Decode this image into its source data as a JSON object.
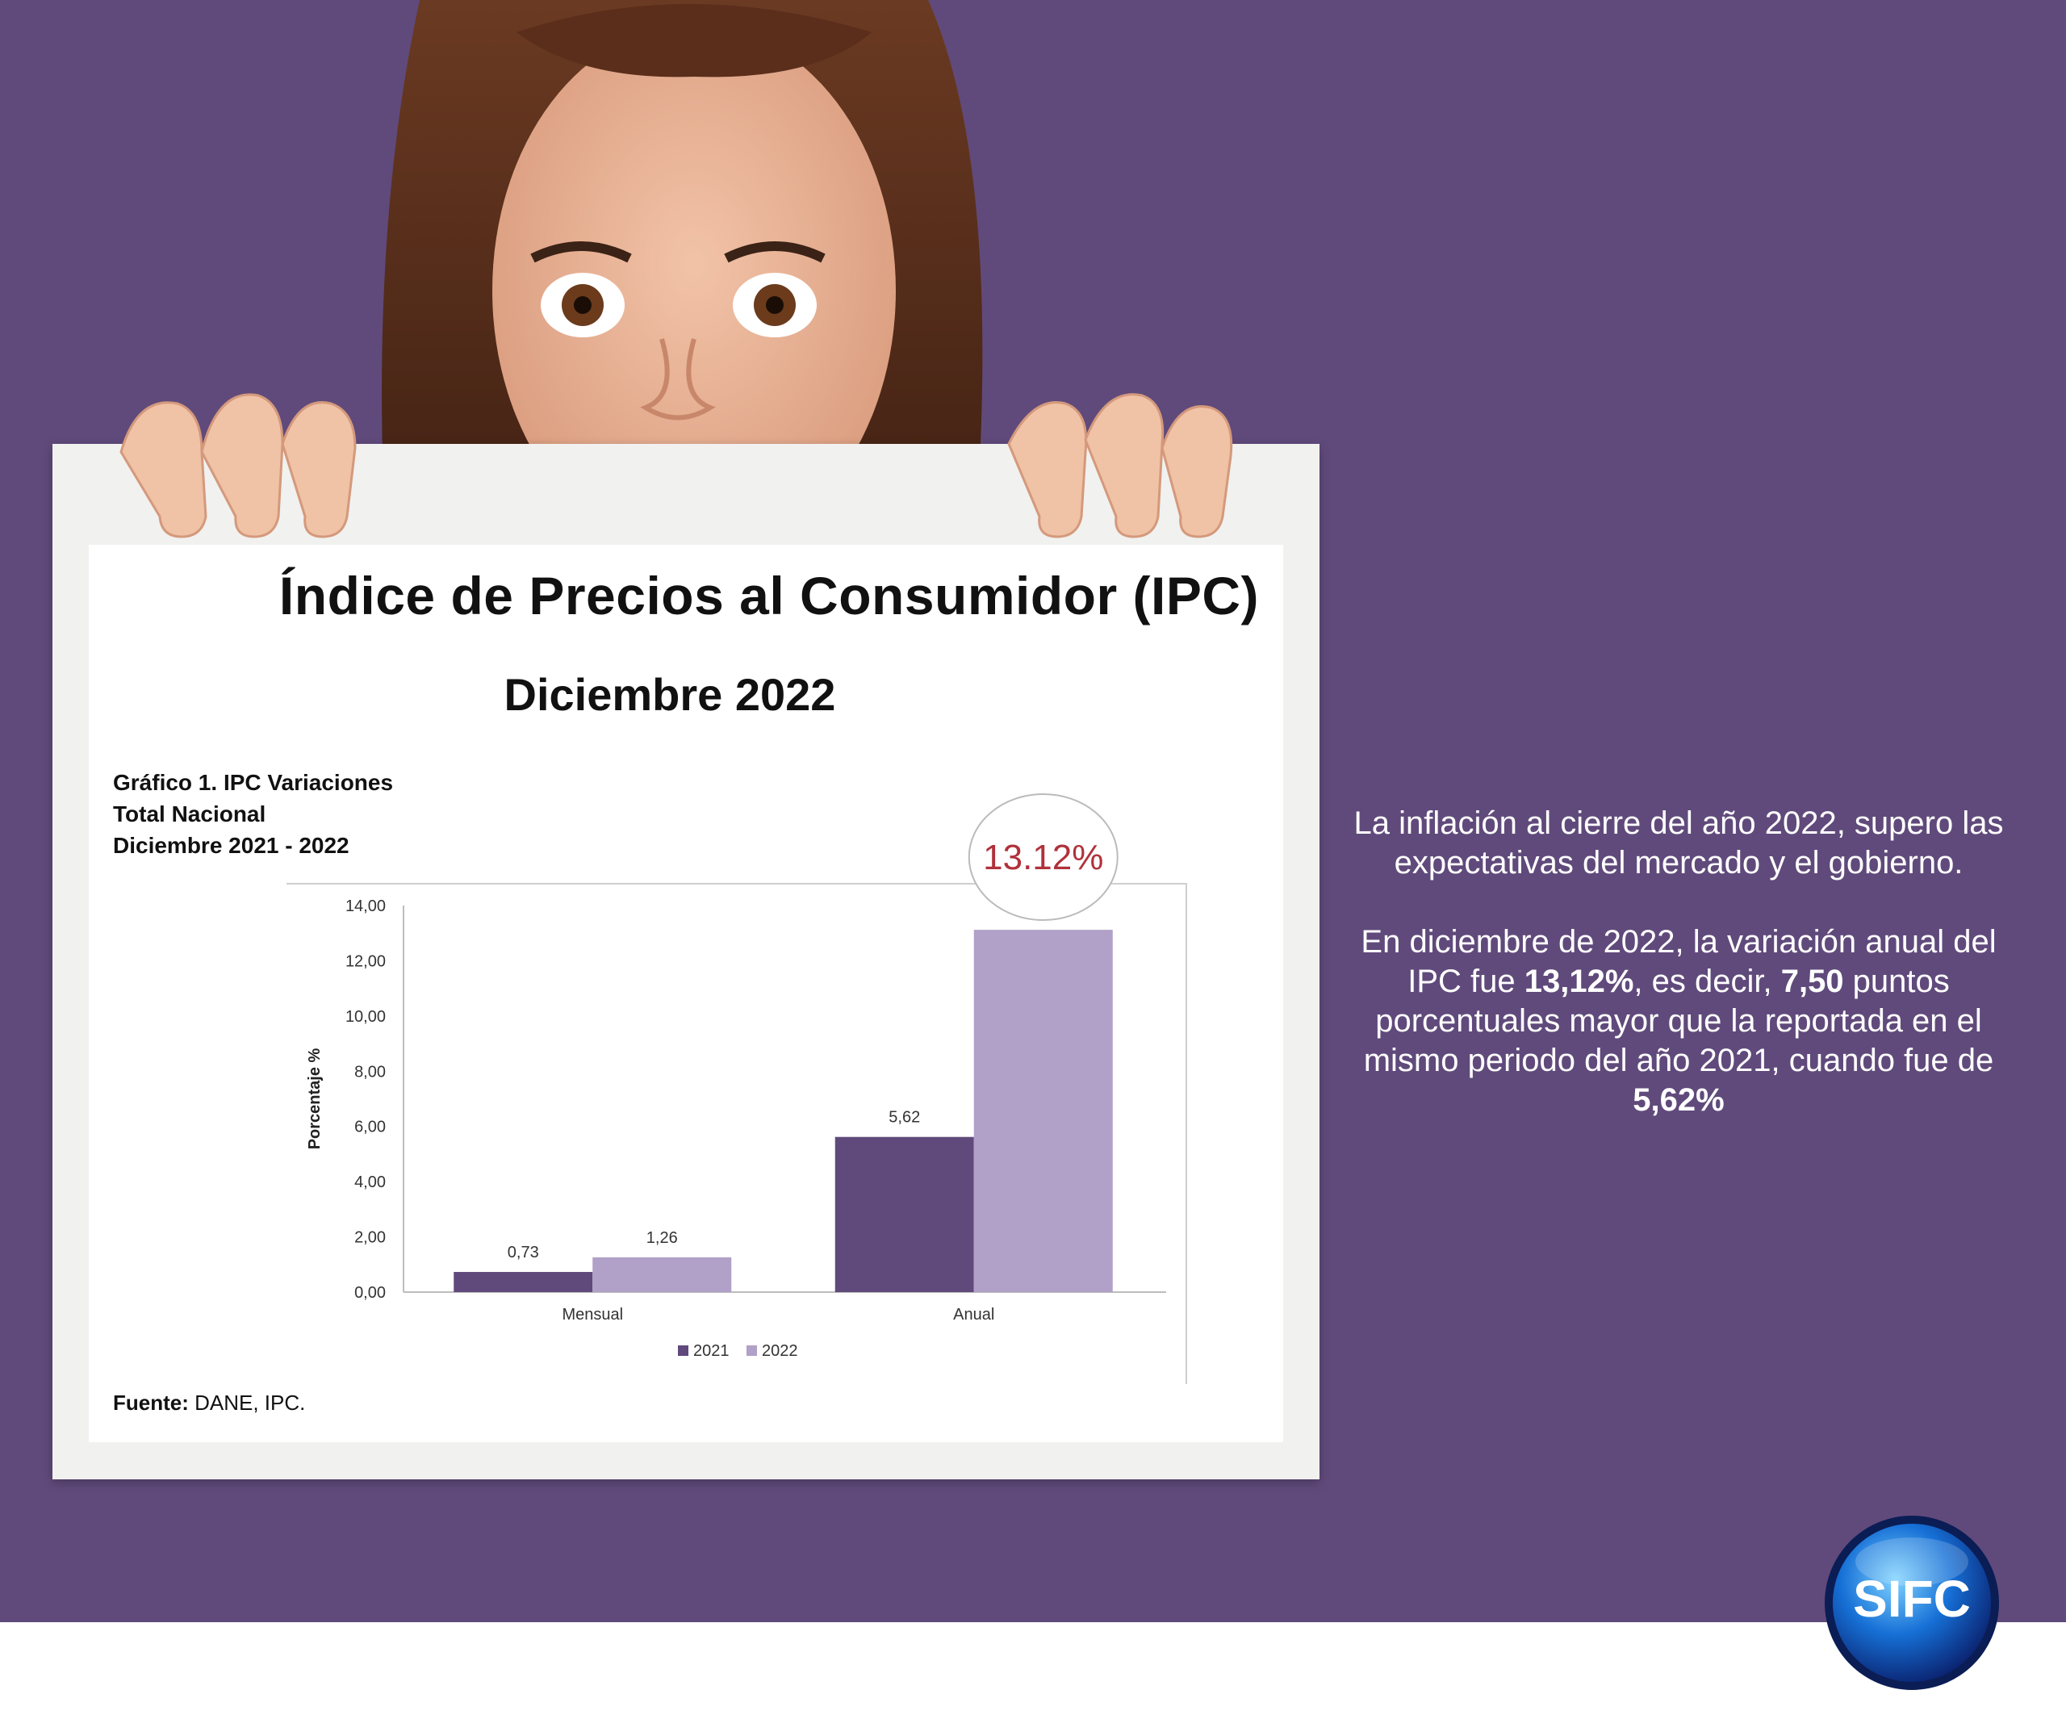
{
  "header": {
    "title": "Índice de Precios al Consumidor (IPC)",
    "subtitle": "Diciembre 2022"
  },
  "chart_caption": {
    "line1": "Gráfico 1. IPC Variaciones",
    "line2": "Total Nacional",
    "line3": "Diciembre 2021 - 2022"
  },
  "source": {
    "label": "Fuente:",
    "text": " DANE, IPC."
  },
  "highlight": {
    "text": "13.12%",
    "color": "#b0323b"
  },
  "chart_data": {
    "type": "bar",
    "categories": [
      "Mensual",
      "Anual"
    ],
    "series": [
      {
        "name": "2021",
        "values": [
          0.73,
          5.62
        ],
        "labels": [
          "0,73",
          "5,62"
        ],
        "color": "#604a7b"
      },
      {
        "name": "2022",
        "values": [
          1.26,
          13.12
        ],
        "labels": [
          "1,26",
          ""
        ],
        "color": "#b1a0c7"
      }
    ],
    "ylabel": "Porcentaje %",
    "ylim": [
      0,
      14
    ],
    "yticks": [
      "0,00",
      "2,00",
      "4,00",
      "6,00",
      "8,00",
      "10,00",
      "12,00",
      "14,00"
    ],
    "grid": false,
    "legend_position": "bottom"
  },
  "description": {
    "p1": "La inflación al cierre del año 2022, supero las expectativas del mercado y el gobierno.",
    "p2_a": "En diciembre de 2022, la variación anual del IPC fue ",
    "p2_b": "13,12%",
    "p2_c": ", es decir, ",
    "p2_d": "7,50",
    "p2_e": " puntos porcentuales mayor que la reportada en el mismo periodo del año 2021, cuando fue de ",
    "p2_f": "5,62%"
  },
  "logo": {
    "text": "SIFC"
  },
  "colors": {
    "background": "#604a7b",
    "bar_2021": "#604a7b",
    "bar_2022": "#b1a0c7"
  }
}
